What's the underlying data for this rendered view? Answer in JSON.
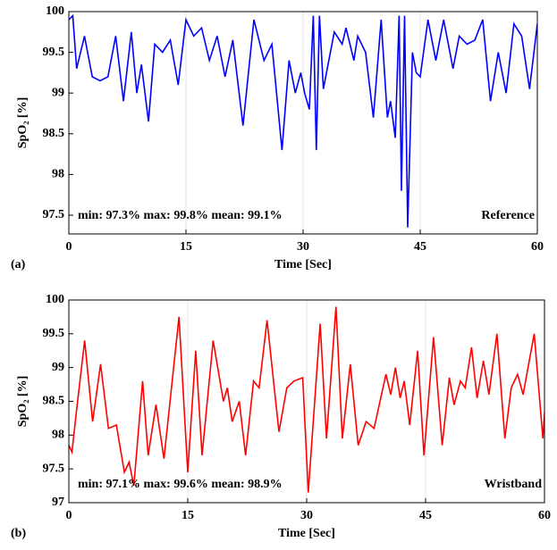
{
  "chart_data": [
    {
      "type": "line",
      "panel_label": "(a)",
      "x_label": "Time [Sec]",
      "y_label": "SpO₂ [%]",
      "annotation": "min: 97.3%  max: 99.8%  mean: 99.1%",
      "legend_text": "Reference",
      "xlim": [
        0,
        60
      ],
      "xticks": [
        0,
        15,
        30,
        45,
        60
      ],
      "ylim": [
        97.27,
        100
      ],
      "yticks": [
        97.5,
        98,
        98.5,
        99,
        99.5,
        100
      ],
      "grid": "x",
      "series": [
        {
          "color": "#0000ff",
          "x": [
            0,
            0.5,
            1,
            2,
            3,
            4,
            5,
            6,
            7,
            8,
            8.7,
            9.3,
            10.2,
            11,
            12,
            13,
            14,
            15,
            16,
            17,
            18,
            19,
            20,
            21,
            22.3,
            23.7,
            25,
            26,
            27.3,
            28.2,
            29,
            29.7,
            30.2,
            30.8,
            31.3,
            31.7,
            32.1,
            32.6,
            34,
            35,
            35.5,
            36.5,
            37,
            38,
            39,
            40,
            40.8,
            41.2,
            41.8,
            42.3,
            42.6,
            43,
            43.4,
            44,
            44.5,
            45,
            46,
            47,
            48,
            49.2,
            50,
            51,
            52,
            53,
            54,
            55,
            56,
            57,
            58,
            59,
            60
          ],
          "values": [
            99.9,
            99.95,
            99.3,
            99.7,
            99.2,
            99.15,
            99.2,
            99.7,
            98.9,
            99.75,
            99.0,
            99.35,
            98.65,
            99.6,
            99.5,
            99.65,
            99.1,
            99.9,
            99.7,
            99.8,
            99.4,
            99.7,
            99.2,
            99.65,
            98.6,
            99.9,
            99.4,
            99.6,
            98.3,
            99.4,
            99.0,
            99.25,
            99.0,
            98.8,
            99.95,
            98.3,
            99.95,
            99.05,
            99.75,
            99.6,
            99.8,
            99.4,
            99.7,
            99.5,
            98.7,
            99.9,
            98.7,
            98.9,
            98.45,
            99.95,
            97.8,
            99.95,
            97.35,
            99.5,
            99.25,
            99.2,
            99.9,
            99.4,
            99.9,
            99.3,
            99.7,
            99.6,
            99.65,
            99.9,
            98.9,
            99.5,
            99.0,
            99.85,
            99.7,
            99.05,
            99.85
          ]
        }
      ]
    },
    {
      "type": "line",
      "panel_label": "(b)",
      "x_label": "Time [Sec]",
      "y_label": "SpO₂ [%]",
      "annotation": "min: 97.1%  max: 99.6%  mean: 98.9%",
      "legend_text": "Wristband",
      "xlim": [
        0,
        60
      ],
      "xticks": [
        0,
        15,
        30,
        45,
        60
      ],
      "ylim": [
        97,
        100
      ],
      "yticks": [
        97,
        97.5,
        98,
        98.5,
        99,
        99.5,
        100
      ],
      "grid": "x",
      "series": [
        {
          "color": "#ff0000",
          "x": [
            0,
            0.4,
            1,
            2,
            3,
            4,
            5,
            6,
            7,
            7.6,
            8.2,
            9.3,
            10,
            11,
            12,
            13.9,
            15,
            16,
            16.8,
            18.2,
            19.5,
            20,
            20.6,
            21.5,
            22.3,
            23.3,
            24,
            25,
            26.5,
            27.5,
            28.4,
            29.5,
            30.2,
            31.7,
            32.5,
            33.7,
            34.5,
            35.5,
            36.5,
            37.5,
            38.5,
            40,
            40.6,
            41.2,
            41.8,
            42.3,
            43,
            44,
            44.8,
            46,
            47.1,
            48,
            48.6,
            49.4,
            50,
            50.8,
            51.5,
            52.3,
            53,
            54,
            55,
            55.8,
            56.6,
            57.3,
            58.7,
            59.8,
            60.4
          ],
          "values": [
            97.85,
            97.75,
            98.4,
            99.4,
            98.2,
            99.05,
            98.1,
            98.15,
            97.45,
            97.6,
            97.25,
            98.8,
            97.7,
            98.45,
            97.65,
            99.75,
            97.45,
            99.25,
            97.7,
            99.4,
            98.5,
            98.7,
            98.2,
            98.5,
            97.7,
            98.8,
            98.7,
            99.7,
            98.05,
            98.7,
            98.8,
            98.85,
            97.15,
            99.65,
            97.95,
            99.9,
            97.95,
            99.05,
            97.85,
            98.2,
            98.1,
            98.9,
            98.6,
            99.0,
            98.55,
            98.8,
            98.15,
            99.25,
            97.7,
            99.45,
            97.85,
            98.85,
            98.45,
            98.8,
            98.7,
            99.3,
            98.55,
            99.1,
            98.6,
            99.5,
            97.95,
            98.7,
            98.9,
            98.6,
            99.5,
            97.95,
            99.0
          ]
        }
      ]
    }
  ]
}
